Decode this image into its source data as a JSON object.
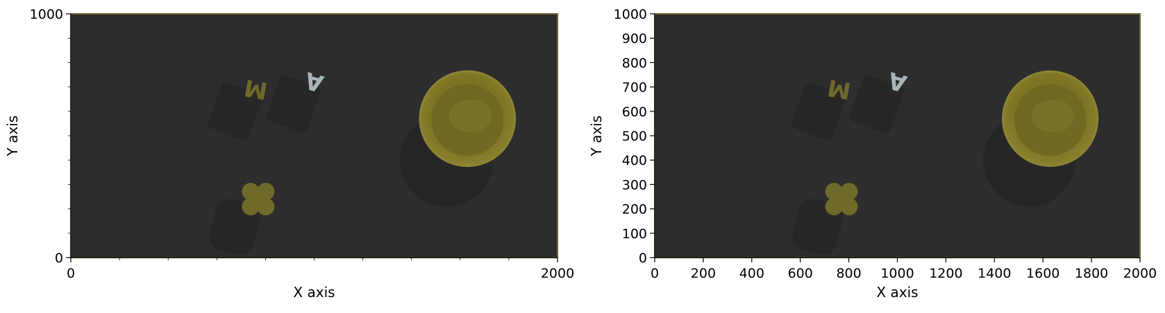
{
  "chart_data": [
    {
      "type": "image",
      "xlabel": "X axis",
      "ylabel": "Y axis",
      "xlim": [
        0,
        2000
      ],
      "ylim": [
        0,
        1000
      ],
      "xticks": [
        0,
        2000
      ],
      "xtick_labels": [
        "0",
        "2000"
      ],
      "yticks": [
        0,
        1000
      ],
      "ytick_labels": [
        "0",
        "1000"
      ],
      "minor_ticks": true,
      "grid": false
    },
    {
      "type": "image",
      "xlabel": "X axis",
      "ylabel": "Y axis",
      "xlim": [
        0,
        2000
      ],
      "ylim": [
        0,
        1000
      ],
      "xticks": [
        0,
        200,
        400,
        600,
        800,
        1000,
        1200,
        1400,
        1600,
        1800,
        2000
      ],
      "xtick_labels": [
        "0",
        "200",
        "400",
        "600",
        "800",
        "1000",
        "1200",
        "1400",
        "1600",
        "1800",
        "2000"
      ],
      "yticks": [
        0,
        100,
        200,
        300,
        400,
        500,
        600,
        700,
        800,
        900,
        1000
      ],
      "ytick_labels": [
        "0",
        "100",
        "200",
        "300",
        "400",
        "500",
        "600",
        "700",
        "800",
        "900",
        "1000"
      ],
      "minor_ticks": false,
      "grid": false
    }
  ],
  "scene": {
    "background_color": "#2d2d2d",
    "border_color": "#6e6437",
    "objects": [
      {
        "name": "letter-m-object",
        "shape": "letter",
        "text": "M",
        "x": 760,
        "y": 690,
        "rotation_deg": 190,
        "color": "#6f6a2a"
      },
      {
        "name": "letter-a-object",
        "shape": "letter",
        "text": "A",
        "x": 1000,
        "y": 720,
        "rotation_deg": 195,
        "color": "#a7b7b9"
      },
      {
        "name": "bowl-object",
        "shape": "bowl",
        "x": 1630,
        "y": 570,
        "r": 195,
        "color": "#7d7424"
      },
      {
        "name": "quatrefoil-object",
        "shape": "quatrefoil",
        "x": 770,
        "y": 240,
        "r": 50,
        "color": "#6f6a2a"
      }
    ]
  }
}
